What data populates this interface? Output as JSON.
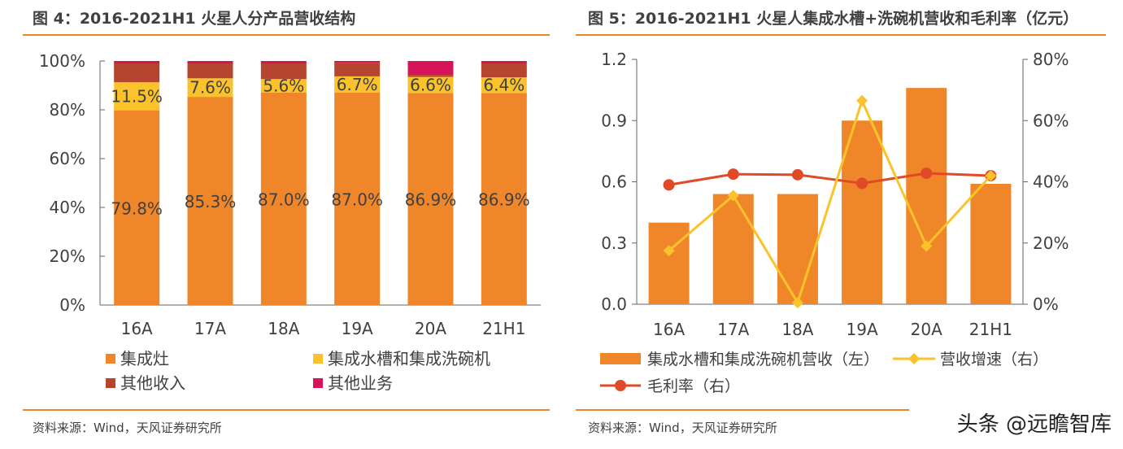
{
  "left": {
    "title": "图 4：2016-2021H1 火星人分产品营收结构",
    "source": "资料来源：Wind，天风证券研究所"
  },
  "right": {
    "title": "图 5：2016-2021H1 火星人集成水槽+洗碗机营收和毛利率（亿元）",
    "source": "资料来源：Wind，天风证券研究所"
  },
  "watermark": "头条 @远瞻智库",
  "chart_data": [
    {
      "type": "bar",
      "stacked": true,
      "categories": [
        "16A",
        "17A",
        "18A",
        "19A",
        "20A",
        "21H1"
      ],
      "series": [
        {
          "name": "集成灶",
          "values": [
            79.8,
            85.3,
            87.0,
            87.0,
            86.9,
            86.9
          ],
          "labels": [
            "79.8%",
            "85.3%",
            "87.0%",
            "87.0%",
            "86.9%",
            "86.9%"
          ],
          "color": "#f0862a"
        },
        {
          "name": "集成水槽和集成洗碗机",
          "values": [
            11.5,
            7.6,
            5.6,
            6.7,
            6.6,
            6.4
          ],
          "labels": [
            "11.5%",
            "7.6%",
            "5.6%",
            "6.7%",
            "6.6%",
            "6.4%"
          ],
          "color": "#fac22b"
        },
        {
          "name": "其他收入",
          "values": [
            7.7,
            6.1,
            6.4,
            5.6,
            0.8,
            5.7
          ],
          "color": "#b5452e"
        },
        {
          "name": "其他业务",
          "values": [
            1.0,
            1.0,
            1.0,
            0.7,
            5.7,
            1.0
          ],
          "color": "#d6145a"
        }
      ],
      "ylim": [
        0,
        100
      ],
      "yticks": [
        "0%",
        "20%",
        "40%",
        "60%",
        "80%",
        "100%"
      ],
      "ytick_values": [
        0,
        20,
        40,
        60,
        80,
        100
      ],
      "legend": "bottom"
    },
    {
      "type": "bar+line",
      "categories": [
        "16A",
        "17A",
        "18A",
        "19A",
        "20A",
        "21H1"
      ],
      "bars": {
        "name": "集成水槽和集成洗碗机营收（左）",
        "values": [
          0.4,
          0.54,
          0.54,
          0.9,
          1.06,
          0.59
        ],
        "color": "#f0862a"
      },
      "lines": [
        {
          "name": "营收增速（右）",
          "values": [
            17.5,
            35.5,
            0.5,
            66.5,
            19.0,
            42.0
          ],
          "color": "#fac22b"
        },
        {
          "name": "毛利率（右）",
          "values": [
            39.0,
            42.5,
            42.3,
            39.5,
            42.8,
            42.0
          ],
          "color": "#e04a26"
        }
      ],
      "yleft": {
        "lim": [
          0,
          1.2
        ],
        "ticks": [
          "0.0",
          "0.3",
          "0.6",
          "0.9",
          "1.2"
        ],
        "values": [
          0,
          0.3,
          0.6,
          0.9,
          1.2
        ]
      },
      "yright": {
        "lim": [
          0,
          80
        ],
        "ticks": [
          "0%",
          "20%",
          "40%",
          "60%",
          "80%"
        ],
        "values": [
          0,
          20,
          40,
          60,
          80
        ]
      },
      "legend": "bottom"
    }
  ]
}
